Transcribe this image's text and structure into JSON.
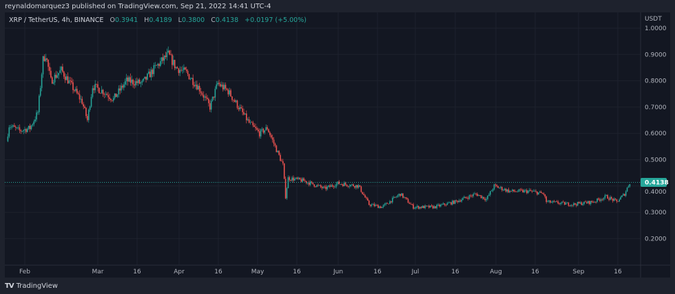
{
  "publisher_line": "reynaldomarquez3 published on TradingView.com, Sep 21, 2022 14:41 UTC-4",
  "legend": {
    "symbol": "XRP / TetherUS, 4h, BINANCE",
    "open_label": "O",
    "open": "0.3941",
    "high_label": "H",
    "high": "0.4189",
    "low_label": "L",
    "low": "0.3800",
    "close_label": "C",
    "close": "0.4138",
    "change": "+0.0197 (+5.00%)"
  },
  "price_axis": {
    "currency": "USDT",
    "ticks": [
      "1.0000",
      "0.9000",
      "0.8000",
      "0.7000",
      "0.6000",
      "0.5000",
      "0.4000",
      "0.3000",
      "0.2000"
    ],
    "last_price": "0.4138"
  },
  "time_axis": {
    "ticks": [
      "Feb",
      "Mar",
      "16",
      "Apr",
      "16",
      "May",
      "16",
      "Jun",
      "16",
      "Jul",
      "16",
      "Aug",
      "16",
      "Sep",
      "16"
    ]
  },
  "footer": {
    "logo": "TV",
    "brand": "TradingView"
  },
  "colors": {
    "up": "#26a69a",
    "down": "#ef5350",
    "background": "#131722",
    "grid": "#1e222d"
  },
  "chart_data": {
    "type": "candlestick",
    "interval": "4h",
    "ylim": [
      0.1,
      1.05
    ],
    "y_unit": "USDT",
    "approx_price_path": [
      [
        "2022-01-25",
        0.57
      ],
      [
        "2022-01-26",
        0.63
      ],
      [
        "2022-01-30",
        0.61
      ],
      [
        "2022-02-03",
        0.62
      ],
      [
        "2022-02-06",
        0.68
      ],
      [
        "2022-02-08",
        0.88
      ],
      [
        "2022-02-09",
        0.9
      ],
      [
        "2022-02-11",
        0.8
      ],
      [
        "2022-02-15",
        0.84
      ],
      [
        "2022-02-19",
        0.78
      ],
      [
        "2022-02-23",
        0.72
      ],
      [
        "2022-02-25",
        0.65
      ],
      [
        "2022-02-27",
        0.78
      ],
      [
        "2022-03-03",
        0.76
      ],
      [
        "2022-03-07",
        0.73
      ],
      [
        "2022-03-12",
        0.8
      ],
      [
        "2022-03-18",
        0.79
      ],
      [
        "2022-03-23",
        0.85
      ],
      [
        "2022-03-28",
        0.9
      ],
      [
        "2022-03-31",
        0.85
      ],
      [
        "2022-04-04",
        0.83
      ],
      [
        "2022-04-09",
        0.77
      ],
      [
        "2022-04-13",
        0.7
      ],
      [
        "2022-04-16",
        0.79
      ],
      [
        "2022-04-20",
        0.76
      ],
      [
        "2022-04-24",
        0.7
      ],
      [
        "2022-04-28",
        0.64
      ],
      [
        "2022-05-02",
        0.6
      ],
      [
        "2022-05-05",
        0.62
      ],
      [
        "2022-05-08",
        0.55
      ],
      [
        "2022-05-11",
        0.48
      ],
      [
        "2022-05-12",
        0.36
      ],
      [
        "2022-05-13",
        0.43
      ],
      [
        "2022-05-19",
        0.42
      ],
      [
        "2022-05-27",
        0.39
      ],
      [
        "2022-06-01",
        0.41
      ],
      [
        "2022-06-09",
        0.4
      ],
      [
        "2022-06-13",
        0.33
      ],
      [
        "2022-06-18",
        0.32
      ],
      [
        "2022-06-25",
        0.37
      ],
      [
        "2022-06-30",
        0.32
      ],
      [
        "2022-07-08",
        0.32
      ],
      [
        "2022-07-16",
        0.34
      ],
      [
        "2022-07-24",
        0.37
      ],
      [
        "2022-07-28",
        0.35
      ],
      [
        "2022-07-31",
        0.4
      ],
      [
        "2022-08-06",
        0.38
      ],
      [
        "2022-08-14",
        0.38
      ],
      [
        "2022-08-19",
        0.37
      ],
      [
        "2022-08-20",
        0.34
      ],
      [
        "2022-08-30",
        0.33
      ],
      [
        "2022-09-07",
        0.34
      ],
      [
        "2022-09-12",
        0.36
      ],
      [
        "2022-09-16",
        0.34
      ],
      [
        "2022-09-19",
        0.37
      ],
      [
        "2022-09-21",
        0.4138
      ]
    ]
  }
}
